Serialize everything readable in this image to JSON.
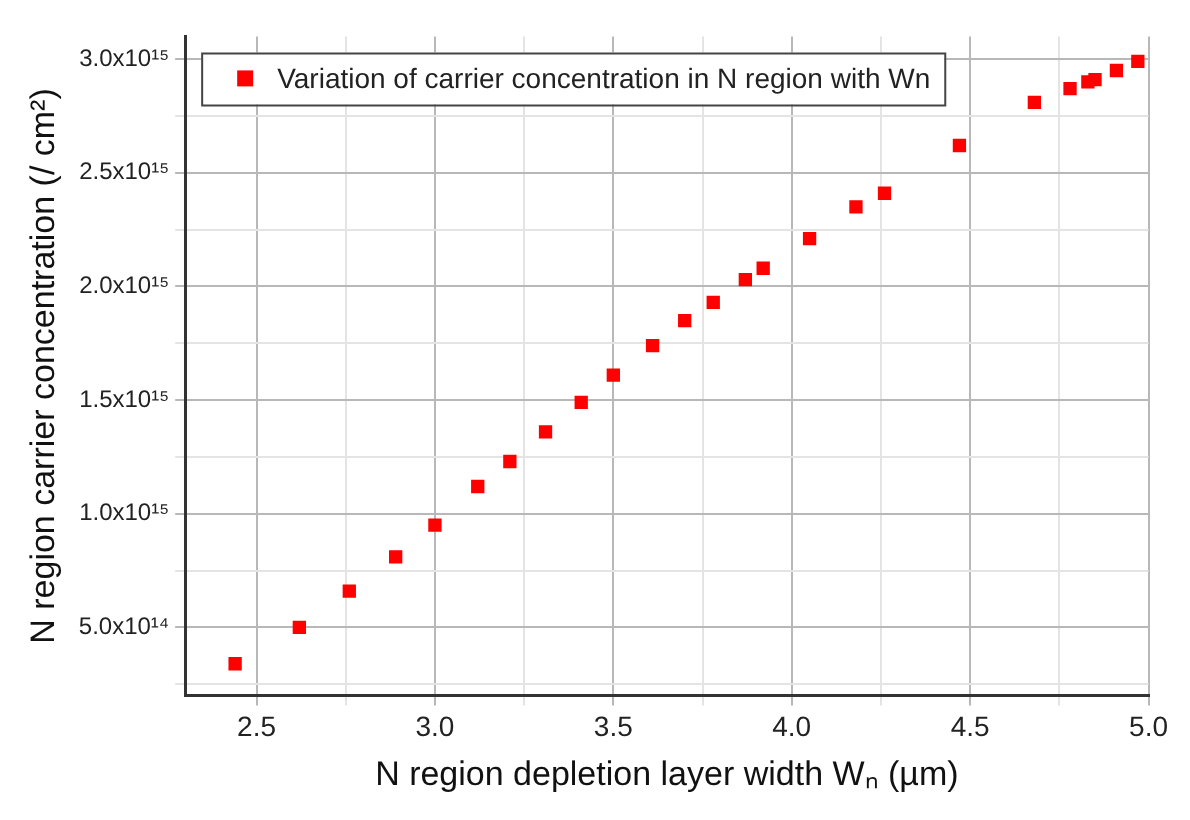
{
  "chart_data": {
    "type": "scatter",
    "xlabel": "N region depletion layer width Wₙ (µm)",
    "ylabel": "N region carrier concentration (/ cm²)",
    "x": [
      2.44,
      2.62,
      2.76,
      2.89,
      3.0,
      3.12,
      3.21,
      3.31,
      3.41,
      3.5,
      3.61,
      3.7,
      3.78,
      3.87,
      3.92,
      4.05,
      4.18,
      4.26,
      4.47,
      4.68,
      4.78,
      4.83,
      4.85,
      4.91,
      4.97
    ],
    "series": [
      {
        "name": "Variation of carrier concentration in N region with Wn",
        "color": "#ff0000",
        "values": [
          340000000000000.0,
          500000000000000.0,
          660000000000000.0,
          810000000000000.0,
          950000000000000.0,
          1120000000000000.0,
          1230000000000000.0,
          1360000000000000.0,
          1490000000000000.0,
          1610000000000000.0,
          1740000000000000.0,
          1850000000000000.0,
          1930000000000000.0,
          2030000000000000.0,
          2080000000000000.0,
          2210000000000000.0,
          2350000000000000.0,
          2410000000000000.0,
          2620000000000000.0,
          2810000000000000.0,
          2870000000000000.0,
          2900000000000000.0,
          2910000000000000.0,
          2950000000000000.0,
          2990000000000000.0
        ]
      }
    ],
    "xlim": [
      2.3,
      5.0
    ],
    "ylim": [
      200000000000000.0,
      3100000000000000.0
    ],
    "xticks": [
      {
        "value": 2.5,
        "label": "2.5"
      },
      {
        "value": 2.75,
        "label": null
      },
      {
        "value": 3.0,
        "label": "3.0"
      },
      {
        "value": 3.25,
        "label": null
      },
      {
        "value": 3.5,
        "label": "3.5"
      },
      {
        "value": 3.75,
        "label": null
      },
      {
        "value": 4.0,
        "label": "4.0"
      },
      {
        "value": 4.25,
        "label": null
      },
      {
        "value": 4.5,
        "label": "4.5"
      },
      {
        "value": 4.75,
        "label": null
      },
      {
        "value": 5.0,
        "label": "5.0"
      }
    ],
    "yticks": [
      {
        "value": 250000000000000.0,
        "label": null
      },
      {
        "value": 500000000000000.0,
        "label": "5.0x10¹⁴"
      },
      {
        "value": 750000000000000.0,
        "label": null
      },
      {
        "value": 1000000000000000.0,
        "label": "1.0x10¹⁵"
      },
      {
        "value": 1250000000000000.0,
        "label": null
      },
      {
        "value": 1500000000000000.0,
        "label": "1.5x10¹⁵"
      },
      {
        "value": 1750000000000000.0,
        "label": null
      },
      {
        "value": 2000000000000000.0,
        "label": "2.0x10¹⁵"
      },
      {
        "value": 2250000000000000.0,
        "label": null
      },
      {
        "value": 2500000000000000.0,
        "label": "2.5x10¹⁵"
      },
      {
        "value": 2750000000000000.0,
        "label": null
      },
      {
        "value": 3000000000000000.0,
        "label": "3.0x10¹⁵"
      }
    ],
    "grid": true,
    "legend": "top left",
    "marker": "square"
  }
}
